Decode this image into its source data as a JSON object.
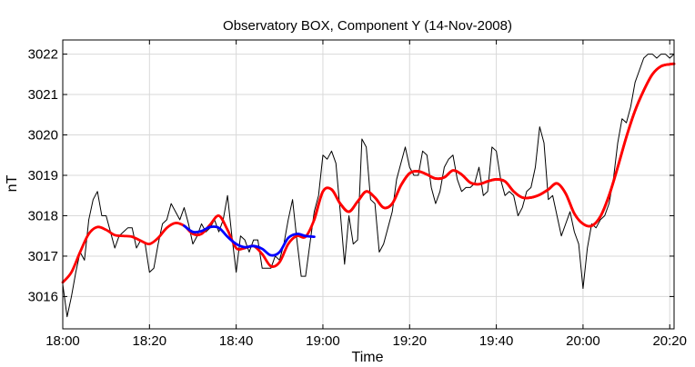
{
  "chart_data": {
    "type": "line",
    "title": "Observatory BOX,  Component Y   (14-Nov-2008)",
    "xlabel": "Time",
    "ylabel": "nT",
    "xlim": [
      "18:00",
      "20:21"
    ],
    "ylim": [
      3015.2,
      3022.35
    ],
    "x_ticks": [
      "18:00",
      "18:20",
      "18:40",
      "19:00",
      "19:20",
      "19:40",
      "20:00",
      "20:20"
    ],
    "y_ticks": [
      3016,
      3017,
      3018,
      3019,
      3020,
      3021,
      3022
    ],
    "grid": true,
    "colors": {
      "raw": "#000000",
      "smooth": "#ff0000",
      "segment": "#0000ff",
      "grid": "#d9d9d9"
    },
    "series": [
      {
        "role": "raw",
        "x": [
          "18:00",
          "18:01",
          "18:02",
          "18:03",
          "18:04",
          "18:05",
          "18:06",
          "18:07",
          "18:08",
          "18:09",
          "18:10",
          "18:11",
          "18:12",
          "18:13",
          "18:14",
          "18:15",
          "18:16",
          "18:17",
          "18:18",
          "18:19",
          "18:20",
          "18:21",
          "18:22",
          "18:23",
          "18:24",
          "18:25",
          "18:26",
          "18:27",
          "18:28",
          "18:29",
          "18:30",
          "18:31",
          "18:32",
          "18:33",
          "18:34",
          "18:35",
          "18:36",
          "18:37",
          "18:38",
          "18:39",
          "18:40",
          "18:41",
          "18:42",
          "18:43",
          "18:44",
          "18:45",
          "18:46",
          "18:47",
          "18:48",
          "18:49",
          "18:50",
          "18:51",
          "18:52",
          "18:53",
          "18:54",
          "18:55",
          "18:56",
          "18:57",
          "18:58",
          "18:59",
          "19:00",
          "19:01",
          "19:02",
          "19:03",
          "19:04",
          "19:05",
          "19:06",
          "19:07",
          "19:08",
          "19:09",
          "19:10",
          "19:11",
          "19:12",
          "19:13",
          "19:14",
          "19:15",
          "19:16",
          "19:17",
          "19:18",
          "19:19",
          "19:20",
          "19:21",
          "19:22",
          "19:23",
          "19:24",
          "19:25",
          "19:26",
          "19:27",
          "19:28",
          "19:29",
          "19:30",
          "19:31",
          "19:32",
          "19:33",
          "19:34",
          "19:35",
          "19:36",
          "19:37",
          "19:38",
          "19:39",
          "19:40",
          "19:41",
          "19:42",
          "19:43",
          "19:44",
          "19:45",
          "19:46",
          "19:47",
          "19:48",
          "19:49",
          "19:50",
          "19:51",
          "19:52",
          "19:53",
          "19:54",
          "19:55",
          "19:56",
          "19:57",
          "19:58",
          "19:59",
          "20:00",
          "20:01",
          "20:02",
          "20:03",
          "20:04",
          "20:05",
          "20:06",
          "20:07",
          "20:08",
          "20:09",
          "20:10",
          "20:11",
          "20:12",
          "20:13",
          "20:14",
          "20:15",
          "20:16",
          "20:17",
          "20:18",
          "20:19",
          "20:20",
          "20:21"
        ],
        "y": [
          3016.3,
          3015.5,
          3016.0,
          3016.6,
          3017.1,
          3016.9,
          3017.9,
          3018.4,
          3018.6,
          3018.0,
          3018.0,
          3017.6,
          3017.2,
          3017.5,
          3017.6,
          3017.7,
          3017.7,
          3017.2,
          3017.4,
          3017.3,
          3016.6,
          3016.7,
          3017.3,
          3017.8,
          3017.9,
          3018.3,
          3018.1,
          3017.9,
          3018.2,
          3017.8,
          3017.3,
          3017.5,
          3017.8,
          3017.6,
          3017.7,
          3017.9,
          3017.6,
          3017.9,
          3018.5,
          3017.5,
          3016.6,
          3017.5,
          3017.4,
          3017.1,
          3017.4,
          3017.4,
          3016.7,
          3016.7,
          3016.7,
          3017.0,
          3016.9,
          3017.3,
          3017.9,
          3018.4,
          3017.4,
          3016.5,
          3016.5,
          3017.3,
          3018.1,
          3018.5,
          3019.5,
          3019.4,
          3019.6,
          3019.3,
          3018.1,
          3016.8,
          3018.0,
          3017.3,
          3017.4,
          3019.9,
          3019.7,
          3018.4,
          3018.3,
          3017.1,
          3017.3,
          3017.7,
          3018.1,
          3018.9,
          3019.3,
          3019.7,
          3019.2,
          3019.0,
          3019.0,
          3019.6,
          3019.5,
          3018.7,
          3018.3,
          3018.6,
          3019.2,
          3019.4,
          3019.5,
          3018.9,
          3018.6,
          3018.7,
          3018.7,
          3018.8,
          3019.2,
          3018.5,
          3018.6,
          3019.7,
          3019.6,
          3018.9,
          3018.5,
          3018.6,
          3018.5,
          3018.0,
          3018.2,
          3018.6,
          3018.7,
          3019.2,
          3020.2,
          3019.8,
          3018.4,
          3018.5,
          3018.0,
          3017.5,
          3017.8,
          3018.1,
          3017.6,
          3017.3,
          3016.2,
          3017.2,
          3017.8,
          3017.7,
          3017.9,
          3018.0,
          3018.3,
          3018.9,
          3019.8,
          3020.4,
          3020.3,
          3020.7,
          3021.3,
          3021.6,
          3021.9,
          3022.0,
          3022.0,
          3021.9,
          3022.0,
          3022.0,
          3021.9,
          3022.0
        ]
      },
      {
        "role": "smooth",
        "x": [
          "18:00",
          "18:02",
          "18:04",
          "18:06",
          "18:08",
          "18:10",
          "18:12",
          "18:14",
          "18:16",
          "18:18",
          "18:20",
          "18:22",
          "18:24",
          "18:26",
          "18:28",
          "18:30",
          "18:32",
          "18:34",
          "18:36",
          "18:38",
          "18:40",
          "18:42",
          "18:44",
          "18:46",
          "18:48",
          "18:50",
          "18:52",
          "18:54",
          "18:56",
          "18:58",
          "19:00",
          "19:02",
          "19:04",
          "19:06",
          "19:08",
          "19:10",
          "19:12",
          "19:14",
          "19:16",
          "19:18",
          "19:20",
          "19:22",
          "19:24",
          "19:26",
          "19:28",
          "19:30",
          "19:32",
          "19:34",
          "19:36",
          "19:38",
          "19:40",
          "19:42",
          "19:44",
          "19:46",
          "19:48",
          "19:50",
          "19:52",
          "19:54",
          "19:56",
          "19:58",
          "20:00",
          "20:02",
          "20:04",
          "20:06",
          "20:08",
          "20:10",
          "20:12",
          "20:14",
          "20:16",
          "20:18",
          "20:20",
          "20:21"
        ],
        "y": [
          3016.35,
          3016.6,
          3017.1,
          3017.55,
          3017.72,
          3017.65,
          3017.52,
          3017.5,
          3017.48,
          3017.38,
          3017.3,
          3017.45,
          3017.7,
          3017.82,
          3017.75,
          3017.55,
          3017.55,
          3017.78,
          3018.0,
          3017.65,
          3017.2,
          3017.2,
          3017.25,
          3017.05,
          3016.75,
          3016.85,
          3017.3,
          3017.5,
          3017.48,
          3017.9,
          3018.6,
          3018.65,
          3018.3,
          3018.1,
          3018.35,
          3018.6,
          3018.45,
          3018.2,
          3018.3,
          3018.75,
          3019.05,
          3019.1,
          3019.02,
          3018.92,
          3018.95,
          3019.12,
          3019.02,
          3018.82,
          3018.78,
          3018.85,
          3018.9,
          3018.85,
          3018.6,
          3018.45,
          3018.45,
          3018.52,
          3018.65,
          3018.8,
          3018.55,
          3018.05,
          3017.8,
          3017.75,
          3017.98,
          3018.5,
          3019.2,
          3019.95,
          3020.6,
          3021.1,
          3021.5,
          3021.7,
          3021.75,
          3021.76
        ]
      },
      {
        "role": "segment",
        "x": [
          "18:28",
          "18:30",
          "18:32",
          "18:34",
          "18:36",
          "18:38",
          "18:40",
          "18:42",
          "18:44",
          "18:46",
          "18:48",
          "18:50",
          "18:52",
          "18:54",
          "18:56",
          "18:58"
        ],
        "y": [
          3017.75,
          3017.6,
          3017.62,
          3017.72,
          3017.7,
          3017.48,
          3017.3,
          3017.22,
          3017.25,
          3017.18,
          3017.02,
          3017.1,
          3017.45,
          3017.55,
          3017.5,
          3017.48
        ]
      }
    ]
  }
}
